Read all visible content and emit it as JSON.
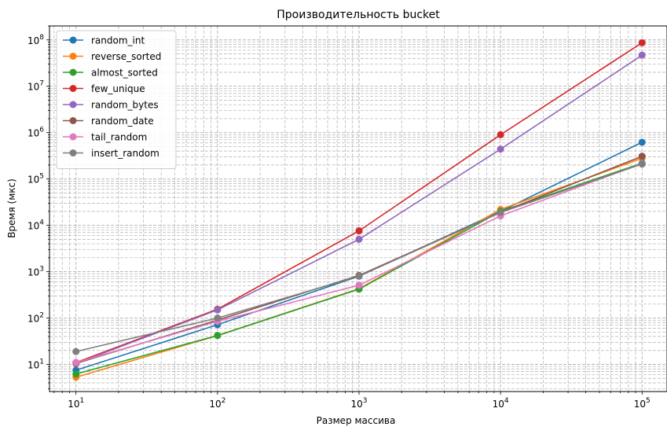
{
  "chart_data": {
    "type": "line",
    "title": "Производительность bucket",
    "xlabel": "Размер массива",
    "ylabel": "Время (мкс)",
    "xscale": "log",
    "yscale": "log",
    "xlim": [
      6.5,
      150000
    ],
    "ylim": [
      2.6,
      200000000
    ],
    "x": [
      10,
      100,
      1000,
      10000,
      100000
    ],
    "xticks": [
      10,
      100,
      1000,
      10000,
      100000
    ],
    "xtick_labels": [
      [
        "10",
        "1"
      ],
      [
        "10",
        "2"
      ],
      [
        "10",
        "3"
      ],
      [
        "10",
        "4"
      ],
      [
        "10",
        "5"
      ]
    ],
    "yticks": [
      10,
      100,
      1000,
      10000,
      100000,
      1000000,
      10000000,
      100000000
    ],
    "ytick_labels": [
      [
        "10",
        "1"
      ],
      [
        "10",
        "2"
      ],
      [
        "10",
        "3"
      ],
      [
        "10",
        "4"
      ],
      [
        "10",
        "5"
      ],
      [
        "10",
        "6"
      ],
      [
        "10",
        "7"
      ],
      [
        "10",
        "8"
      ]
    ],
    "grid": "both (major and minor, dashed)",
    "legend_position": "top-left",
    "series": [
      {
        "name": "random_int",
        "color": "#1f77b4",
        "values": [
          7.5,
          72,
          800,
          20000,
          620000
        ]
      },
      {
        "name": "reverse_sorted",
        "color": "#ff7f0e",
        "values": [
          5.3,
          42,
          430,
          22000,
          280000
        ]
      },
      {
        "name": "almost_sorted",
        "color": "#2ca02c",
        "values": [
          6.2,
          42,
          420,
          20000,
          220000
        ]
      },
      {
        "name": "few_unique",
        "color": "#d62728",
        "values": [
          11,
          155,
          7600,
          900000,
          87000000
        ]
      },
      {
        "name": "random_bytes",
        "color": "#9467bd",
        "values": [
          10.5,
          150,
          5000,
          440000,
          47000000
        ]
      },
      {
        "name": "random_date",
        "color": "#8c564b",
        "values": [
          10.5,
          90,
          830,
          19000,
          310000
        ]
      },
      {
        "name": "tail_random",
        "color": "#e377c2",
        "values": [
          11,
          85,
          510,
          16000,
          215000
        ]
      },
      {
        "name": "insert_random",
        "color": "#7f7f7f",
        "values": [
          19,
          100,
          800,
          19000,
          210000
        ]
      }
    ]
  }
}
